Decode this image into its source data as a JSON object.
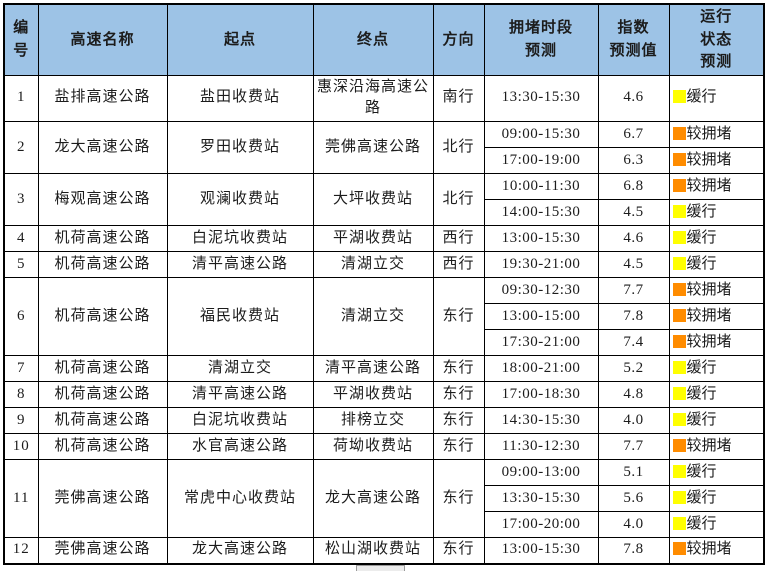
{
  "colors": {
    "header_bg": "#9dc3e6",
    "border": "#000000",
    "status_slow": "#ffff00",
    "status_congested": "#ff8c00",
    "text": "#1c1c1c"
  },
  "table": {
    "headers": [
      {
        "key": "no",
        "label": "编\n号"
      },
      {
        "key": "name",
        "label": "高速名称"
      },
      {
        "key": "start",
        "label": "起点"
      },
      {
        "key": "end",
        "label": "终点"
      },
      {
        "key": "direction",
        "label": "方向"
      },
      {
        "key": "period",
        "label": "拥堵时段\n预测"
      },
      {
        "key": "index",
        "label": "指数\n预测值"
      },
      {
        "key": "status",
        "label": "运行\n状态\n预测"
      }
    ],
    "rows": [
      {
        "no": "1",
        "name": "盐排高速公路",
        "start": "盐田收费站",
        "end": "惠深沿海高速公路",
        "direction": "南行",
        "periods": [
          {
            "time": "13:30-15:30",
            "index": "4.6",
            "status": "缓行",
            "level": "slow"
          }
        ]
      },
      {
        "no": "2",
        "name": "龙大高速公路",
        "start": "罗田收费站",
        "end": "莞佛高速公路",
        "direction": "北行",
        "periods": [
          {
            "time": "09:00-15:30",
            "index": "6.7",
            "status": "较拥堵",
            "level": "congested"
          },
          {
            "time": "17:00-19:00",
            "index": "6.3",
            "status": "较拥堵",
            "level": "congested"
          }
        ]
      },
      {
        "no": "3",
        "name": "梅观高速公路",
        "start": "观澜收费站",
        "end": "大坪收费站",
        "direction": "北行",
        "periods": [
          {
            "time": "10:00-11:30",
            "index": "6.8",
            "status": "较拥堵",
            "level": "congested"
          },
          {
            "time": "14:00-15:30",
            "index": "4.5",
            "status": "缓行",
            "level": "slow"
          }
        ]
      },
      {
        "no": "4",
        "name": "机荷高速公路",
        "start": "白泥坑收费站",
        "end": "平湖收费站",
        "direction": "西行",
        "periods": [
          {
            "time": "13:00-15:30",
            "index": "4.6",
            "status": "缓行",
            "level": "slow"
          }
        ]
      },
      {
        "no": "5",
        "name": "机荷高速公路",
        "start": "清平高速公路",
        "end": "清湖立交",
        "direction": "西行",
        "periods": [
          {
            "time": "19:30-21:00",
            "index": "4.5",
            "status": "缓行",
            "level": "slow"
          }
        ]
      },
      {
        "no": "6",
        "name": "机荷高速公路",
        "start": "福民收费站",
        "end": "清湖立交",
        "direction": "东行",
        "periods": [
          {
            "time": "09:30-12:30",
            "index": "7.7",
            "status": "较拥堵",
            "level": "congested"
          },
          {
            "time": "13:00-15:00",
            "index": "7.8",
            "status": "较拥堵",
            "level": "congested"
          },
          {
            "time": "17:30-21:00",
            "index": "7.4",
            "status": "较拥堵",
            "level": "congested"
          }
        ]
      },
      {
        "no": "7",
        "name": "机荷高速公路",
        "start": "清湖立交",
        "end": "清平高速公路",
        "direction": "东行",
        "periods": [
          {
            "time": "18:00-21:00",
            "index": "5.2",
            "status": "缓行",
            "level": "slow"
          }
        ]
      },
      {
        "no": "8",
        "name": "机荷高速公路",
        "start": "清平高速公路",
        "end": "平湖收费站",
        "direction": "东行",
        "periods": [
          {
            "time": "17:00-18:30",
            "index": "4.8",
            "status": "缓行",
            "level": "slow"
          }
        ]
      },
      {
        "no": "9",
        "name": "机荷高速公路",
        "start": "白泥坑收费站",
        "end": "排榜立交",
        "direction": "东行",
        "periods": [
          {
            "time": "14:30-15:30",
            "index": "4.0",
            "status": "缓行",
            "level": "slow"
          }
        ]
      },
      {
        "no": "10",
        "name": "机荷高速公路",
        "start": "水官高速公路",
        "end": "荷坳收费站",
        "direction": "东行",
        "periods": [
          {
            "time": "11:30-12:30",
            "index": "7.7",
            "status": "较拥堵",
            "level": "congested"
          }
        ]
      },
      {
        "no": "11",
        "name": "莞佛高速公路",
        "start": "常虎中心收费站",
        "end": "龙大高速公路",
        "direction": "东行",
        "periods": [
          {
            "time": "09:00-13:00",
            "index": "5.1",
            "status": "缓行",
            "level": "slow"
          },
          {
            "time": "13:30-15:30",
            "index": "5.6",
            "status": "缓行",
            "level": "slow"
          },
          {
            "time": "17:00-20:00",
            "index": "4.0",
            "status": "缓行",
            "level": "slow"
          }
        ]
      },
      {
        "no": "12",
        "name": "莞佛高速公路",
        "start": "龙大高速公路",
        "end": "松山湖收费站",
        "direction": "东行",
        "periods": [
          {
            "time": "13:00-15:30",
            "index": "7.8",
            "status": "较拥堵",
            "level": "congested"
          }
        ]
      }
    ]
  }
}
